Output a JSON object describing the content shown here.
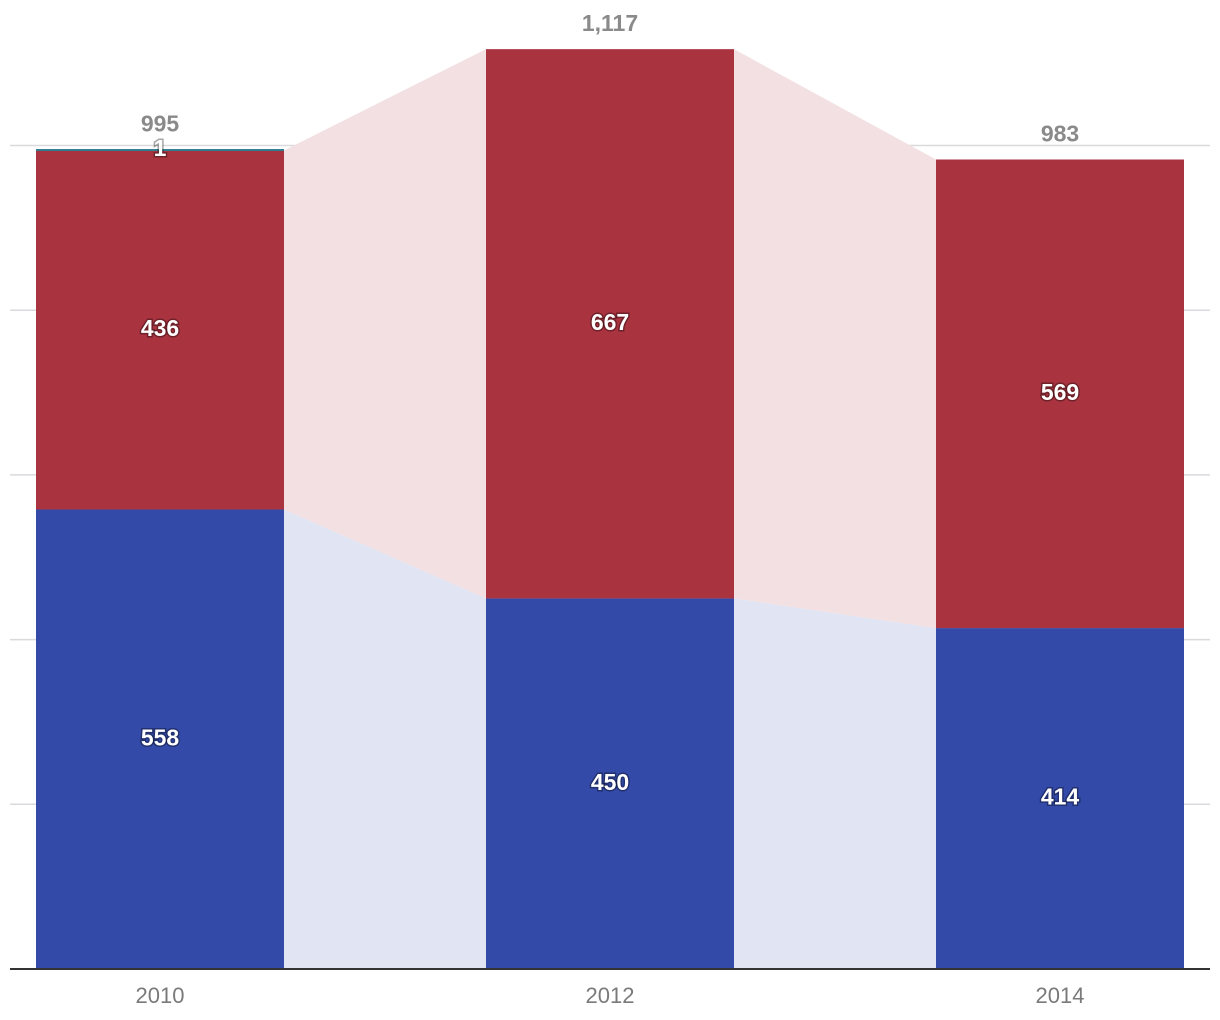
{
  "chart_data": {
    "type": "bar",
    "stacked": true,
    "categories": [
      "2010",
      "2012",
      "2014"
    ],
    "series": [
      {
        "values": [
          558,
          450,
          414
        ],
        "color": "#344aa9",
        "band_color": "#e0e4f3"
      },
      {
        "values": [
          436,
          667,
          569
        ],
        "color": "#aa3340",
        "band_color": "#f3e0e2"
      },
      {
        "values": [
          1,
          0,
          0
        ],
        "color": "#2f7d8f"
      }
    ],
    "segment_labels": [
      [
        "558",
        "436",
        "1"
      ],
      [
        "450",
        "667",
        ""
      ],
      [
        "414",
        "569",
        ""
      ]
    ],
    "totals": [
      995,
      1117,
      983
    ],
    "total_labels": [
      "995",
      "1,117",
      "983"
    ],
    "ylim": [
      0,
      1200
    ],
    "y_gridlines": [
      200,
      400,
      600,
      800,
      1000
    ],
    "grid": true,
    "title": "",
    "xlabel": "",
    "ylabel": ""
  }
}
